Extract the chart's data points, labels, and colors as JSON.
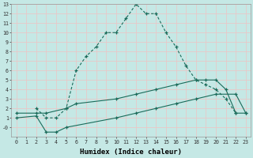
{
  "xlabel": "Humidex (Indice chaleur)",
  "bg_color": "#c5e8e5",
  "grid_color": "#e8c8c8",
  "line_color": "#1a6b5a",
  "xlim": [
    -0.5,
    23.5
  ],
  "ylim": [
    -1,
    13
  ],
  "xticks": [
    0,
    1,
    2,
    3,
    4,
    5,
    6,
    7,
    8,
    9,
    10,
    11,
    12,
    13,
    14,
    15,
    16,
    17,
    18,
    19,
    20,
    21,
    22,
    23
  ],
  "ytick_vals": [
    0,
    1,
    2,
    3,
    4,
    5,
    6,
    7,
    8,
    9,
    10,
    11,
    12,
    13
  ],
  "ytick_labels": [
    "-0",
    "1",
    "2",
    "3",
    "4",
    "5",
    "6",
    "7",
    "8",
    "9",
    "10",
    "11",
    "12",
    "13"
  ],
  "line1_x": [
    2,
    3,
    4,
    5,
    6,
    7,
    8,
    9,
    10,
    11,
    12,
    13,
    14,
    15,
    16,
    17,
    18,
    19,
    20,
    21,
    22
  ],
  "line1_y": [
    2,
    1,
    1,
    2,
    6,
    7.5,
    8.5,
    10,
    10,
    11.5,
    13,
    12,
    12,
    10,
    8.5,
    6.5,
    5,
    4.5,
    4,
    3,
    1.5
  ],
  "line2_x": [
    0,
    2,
    3,
    5,
    6,
    10,
    12,
    14,
    16,
    18,
    19,
    20,
    21,
    22,
    23
  ],
  "line2_y": [
    1.5,
    1.5,
    1.5,
    2,
    2.5,
    3,
    3.5,
    4,
    4.5,
    5,
    5,
    5,
    4,
    1.5,
    1.5
  ],
  "line3_x": [
    0,
    2,
    3,
    4,
    5,
    10,
    12,
    14,
    16,
    18,
    20,
    22,
    23
  ],
  "line3_y": [
    1,
    1.2,
    -0.5,
    -0.5,
    0,
    1,
    1.5,
    2,
    2.5,
    3,
    3.5,
    3.5,
    1.5
  ]
}
